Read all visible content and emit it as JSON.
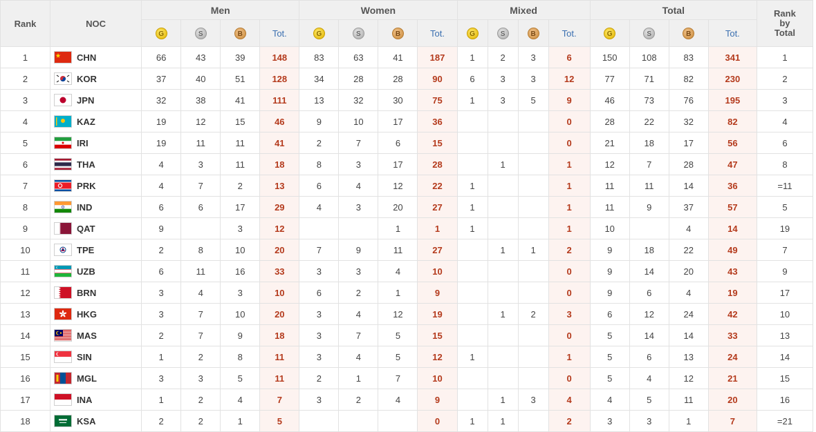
{
  "headers": {
    "rank": "Rank",
    "noc": "NOC",
    "men": "Men",
    "women": "Women",
    "mixed": "Mixed",
    "total": "Total",
    "rank_by_total": [
      "Rank",
      "by",
      "Total"
    ],
    "tot": "Tot.",
    "medal_letters": {
      "gold": "G",
      "silver": "S",
      "bronze": "B"
    }
  },
  "colors": {
    "total_text": "#b43a1c",
    "total_bg": "#fdf3f0",
    "tot_header": "#3a6fb0"
  },
  "rows": [
    {
      "rank": "1",
      "noc": "CHN",
      "flag": "china-flag",
      "men": [
        "66",
        "43",
        "39",
        "148"
      ],
      "women": [
        "83",
        "63",
        "41",
        "187"
      ],
      "mixed": [
        "1",
        "2",
        "3",
        "6"
      ],
      "total": [
        "150",
        "108",
        "83",
        "341"
      ],
      "rbt": "1"
    },
    {
      "rank": "2",
      "noc": "KOR",
      "flag": "korea-flag",
      "men": [
        "37",
        "40",
        "51",
        "128"
      ],
      "women": [
        "34",
        "28",
        "28",
        "90"
      ],
      "mixed": [
        "6",
        "3",
        "3",
        "12"
      ],
      "total": [
        "77",
        "71",
        "82",
        "230"
      ],
      "rbt": "2"
    },
    {
      "rank": "3",
      "noc": "JPN",
      "flag": "japan-flag",
      "men": [
        "32",
        "38",
        "41",
        "111"
      ],
      "women": [
        "13",
        "32",
        "30",
        "75"
      ],
      "mixed": [
        "1",
        "3",
        "5",
        "9"
      ],
      "total": [
        "46",
        "73",
        "76",
        "195"
      ],
      "rbt": "3"
    },
    {
      "rank": "4",
      "noc": "KAZ",
      "flag": "kazakhstan-flag",
      "men": [
        "19",
        "12",
        "15",
        "46"
      ],
      "women": [
        "9",
        "10",
        "17",
        "36"
      ],
      "mixed": [
        "",
        "",
        "",
        "0"
      ],
      "total": [
        "28",
        "22",
        "32",
        "82"
      ],
      "rbt": "4"
    },
    {
      "rank": "5",
      "noc": "IRI",
      "flag": "iran-flag",
      "men": [
        "19",
        "11",
        "11",
        "41"
      ],
      "women": [
        "2",
        "7",
        "6",
        "15"
      ],
      "mixed": [
        "",
        "",
        "",
        "0"
      ],
      "total": [
        "21",
        "18",
        "17",
        "56"
      ],
      "rbt": "6"
    },
    {
      "rank": "6",
      "noc": "THA",
      "flag": "thailand-flag",
      "men": [
        "4",
        "3",
        "11",
        "18"
      ],
      "women": [
        "8",
        "3",
        "17",
        "28"
      ],
      "mixed": [
        "",
        "1",
        "",
        "1"
      ],
      "total": [
        "12",
        "7",
        "28",
        "47"
      ],
      "rbt": "8"
    },
    {
      "rank": "7",
      "noc": "PRK",
      "flag": "north-korea-flag",
      "men": [
        "4",
        "7",
        "2",
        "13"
      ],
      "women": [
        "6",
        "4",
        "12",
        "22"
      ],
      "mixed": [
        "1",
        "",
        "",
        "1"
      ],
      "total": [
        "11",
        "11",
        "14",
        "36"
      ],
      "rbt": "=11"
    },
    {
      "rank": "8",
      "noc": "IND",
      "flag": "india-flag",
      "men": [
        "6",
        "6",
        "17",
        "29"
      ],
      "women": [
        "4",
        "3",
        "20",
        "27"
      ],
      "mixed": [
        "1",
        "",
        "",
        "1"
      ],
      "total": [
        "11",
        "9",
        "37",
        "57"
      ],
      "rbt": "5"
    },
    {
      "rank": "9",
      "noc": "QAT",
      "flag": "qatar-flag",
      "men": [
        "9",
        "",
        "3",
        "12"
      ],
      "women": [
        "",
        "",
        "1",
        "1"
      ],
      "mixed": [
        "1",
        "",
        "",
        "1"
      ],
      "total": [
        "10",
        "",
        "4",
        "14"
      ],
      "rbt": "19"
    },
    {
      "rank": "10",
      "noc": "TPE",
      "flag": "chinese-taipei-flag",
      "men": [
        "2",
        "8",
        "10",
        "20"
      ],
      "women": [
        "7",
        "9",
        "11",
        "27"
      ],
      "mixed": [
        "",
        "1",
        "1",
        "2"
      ],
      "total": [
        "9",
        "18",
        "22",
        "49"
      ],
      "rbt": "7"
    },
    {
      "rank": "11",
      "noc": "UZB",
      "flag": "uzbekistan-flag",
      "men": [
        "6",
        "11",
        "16",
        "33"
      ],
      "women": [
        "3",
        "3",
        "4",
        "10"
      ],
      "mixed": [
        "",
        "",
        "",
        "0"
      ],
      "total": [
        "9",
        "14",
        "20",
        "43"
      ],
      "rbt": "9"
    },
    {
      "rank": "12",
      "noc": "BRN",
      "flag": "bahrain-flag",
      "men": [
        "3",
        "4",
        "3",
        "10"
      ],
      "women": [
        "6",
        "2",
        "1",
        "9"
      ],
      "mixed": [
        "",
        "",
        "",
        "0"
      ],
      "total": [
        "9",
        "6",
        "4",
        "19"
      ],
      "rbt": "17"
    },
    {
      "rank": "13",
      "noc": "HKG",
      "flag": "hong-kong-flag",
      "men": [
        "3",
        "7",
        "10",
        "20"
      ],
      "women": [
        "3",
        "4",
        "12",
        "19"
      ],
      "mixed": [
        "",
        "1",
        "2",
        "3"
      ],
      "total": [
        "6",
        "12",
        "24",
        "42"
      ],
      "rbt": "10"
    },
    {
      "rank": "14",
      "noc": "MAS",
      "flag": "malaysia-flag",
      "men": [
        "2",
        "7",
        "9",
        "18"
      ],
      "women": [
        "3",
        "7",
        "5",
        "15"
      ],
      "mixed": [
        "",
        "",
        "",
        "0"
      ],
      "total": [
        "5",
        "14",
        "14",
        "33"
      ],
      "rbt": "13"
    },
    {
      "rank": "15",
      "noc": "SIN",
      "flag": "singapore-flag",
      "men": [
        "1",
        "2",
        "8",
        "11"
      ],
      "women": [
        "3",
        "4",
        "5",
        "12"
      ],
      "mixed": [
        "1",
        "",
        "",
        "1"
      ],
      "total": [
        "5",
        "6",
        "13",
        "24"
      ],
      "rbt": "14"
    },
    {
      "rank": "16",
      "noc": "MGL",
      "flag": "mongolia-flag",
      "men": [
        "3",
        "3",
        "5",
        "11"
      ],
      "women": [
        "2",
        "1",
        "7",
        "10"
      ],
      "mixed": [
        "",
        "",
        "",
        "0"
      ],
      "total": [
        "5",
        "4",
        "12",
        "21"
      ],
      "rbt": "15"
    },
    {
      "rank": "17",
      "noc": "INA",
      "flag": "indonesia-flag",
      "men": [
        "1",
        "2",
        "4",
        "7"
      ],
      "women": [
        "3",
        "2",
        "4",
        "9"
      ],
      "mixed": [
        "",
        "1",
        "3",
        "4"
      ],
      "total": [
        "4",
        "5",
        "11",
        "20"
      ],
      "rbt": "16"
    },
    {
      "rank": "18",
      "noc": "KSA",
      "flag": "saudi-arabia-flag",
      "men": [
        "2",
        "2",
        "1",
        "5"
      ],
      "women": [
        "",
        "",
        "",
        "0"
      ],
      "mixed": [
        "1",
        "1",
        "",
        "2"
      ],
      "total": [
        "3",
        "3",
        "1",
        "7"
      ],
      "rbt": "=21"
    }
  ]
}
